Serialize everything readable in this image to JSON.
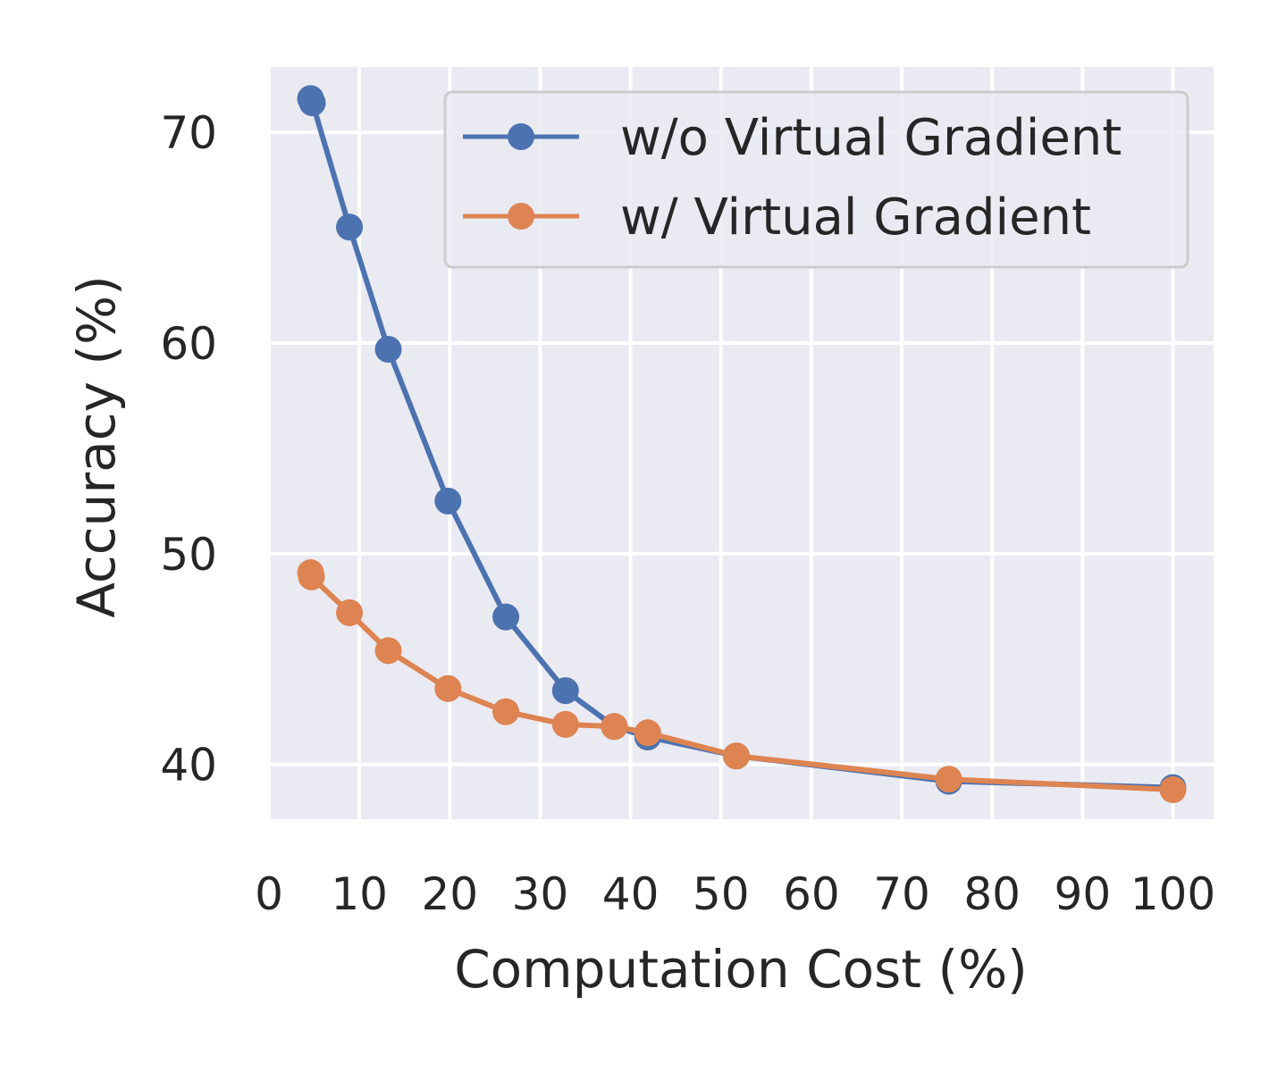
{
  "chart_data": {
    "type": "line",
    "xlabel": "Computation Cost (%)",
    "ylabel": "Accuracy (%)",
    "xlim": [
      0,
      104.5
    ],
    "ylim": [
      37.4,
      73.1
    ],
    "xticks": [
      0,
      10,
      20,
      30,
      40,
      50,
      60,
      70,
      80,
      90,
      100
    ],
    "yticks": [
      40,
      50,
      60,
      70
    ],
    "grid": true,
    "legend_position": "top-right",
    "series": [
      {
        "name": "w/o Virtual Gradient",
        "color": "#4c72b0",
        "x": [
          4.6,
          4.8,
          8.9,
          13.2,
          19.8,
          26.2,
          32.8,
          38.2,
          41.9,
          51.7,
          75.2,
          100.0
        ],
        "y": [
          71.6,
          71.4,
          65.5,
          59.7,
          52.5,
          47.0,
          43.5,
          41.8,
          41.3,
          40.4,
          39.2,
          38.9
        ]
      },
      {
        "name": "w/ Virtual Gradient",
        "color": "#dd8452",
        "x": [
          4.6,
          4.7,
          8.9,
          13.2,
          19.8,
          26.2,
          32.8,
          38.2,
          41.9,
          51.7,
          75.2,
          100.0
        ],
        "y": [
          49.1,
          48.9,
          47.2,
          45.4,
          43.6,
          42.5,
          41.9,
          41.8,
          41.5,
          40.4,
          39.3,
          38.8
        ]
      }
    ]
  }
}
